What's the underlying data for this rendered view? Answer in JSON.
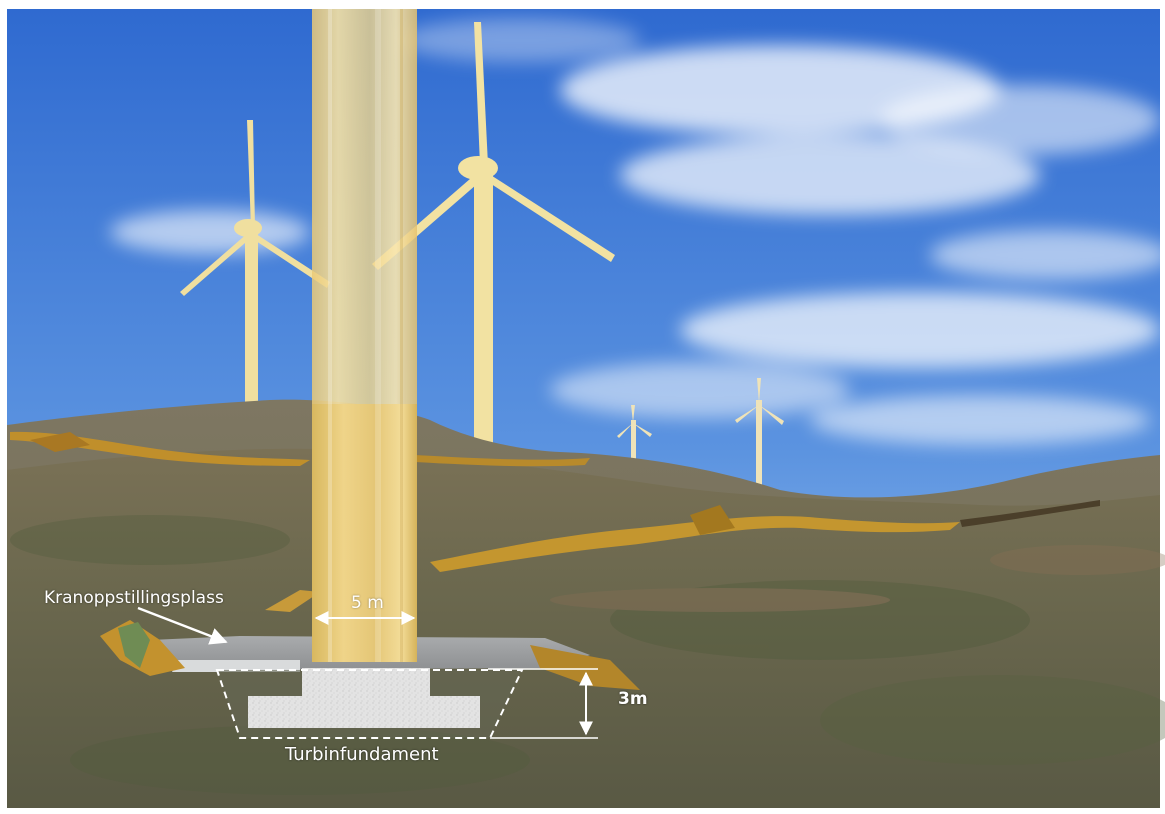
{
  "scene": {
    "description_free": true,
    "labels": {
      "crane_pad": "Kranoppstillingsplass",
      "tower_width": "5 m",
      "foundation_depth": "3m",
      "foundation": "Turbinfundament"
    },
    "colors": {
      "sky_top": "#3e77d6",
      "sky_bottom": "#8fbbe8",
      "terrain": "#6e6a4f",
      "tower": "#f3d98c",
      "excavation": "#c8962a",
      "pad": "#9a9c9e",
      "concrete": "#e2e2e2"
    }
  }
}
